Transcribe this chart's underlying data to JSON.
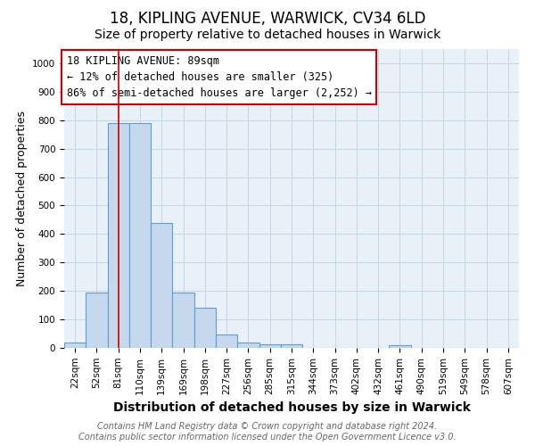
{
  "title1": "18, KIPLING AVENUE, WARWICK, CV34 6LD",
  "title2": "Size of property relative to detached houses in Warwick",
  "xlabel": "Distribution of detached houses by size in Warwick",
  "ylabel": "Number of detached properties",
  "categories": [
    "22sqm",
    "52sqm",
    "81sqm",
    "110sqm",
    "139sqm",
    "169sqm",
    "198sqm",
    "227sqm",
    "256sqm",
    "285sqm",
    "315sqm",
    "344sqm",
    "373sqm",
    "402sqm",
    "432sqm",
    "461sqm",
    "490sqm",
    "519sqm",
    "549sqm",
    "578sqm",
    "607sqm"
  ],
  "values": [
    20,
    195,
    790,
    790,
    440,
    195,
    140,
    48,
    20,
    13,
    13,
    0,
    0,
    0,
    0,
    10,
    0,
    0,
    0,
    0,
    0
  ],
  "bar_color": "#c6d9ec",
  "bar_edge_color": "#5a9fd4",
  "vline_x": 2,
  "vline_color": "#cc0000",
  "annotation_text": "18 KIPLING AVENUE: 89sqm\n← 12% of detached houses are smaller (325)\n86% of semi-detached houses are larger (2,252) →",
  "annotation_box_color": "#ffffff",
  "annotation_box_edge_color": "#cc0000",
  "ylim": [
    0,
    1050
  ],
  "yticks": [
    0,
    100,
    200,
    300,
    400,
    500,
    600,
    700,
    800,
    900,
    1000
  ],
  "footer1": "Contains HM Land Registry data © Crown copyright and database right 2024.",
  "footer2": "Contains public sector information licensed under the Open Government Licence v3.0.",
  "bg_color": "#ffffff",
  "plot_bg_color": "#e8f0f8",
  "grid_color": "#c8d4e0",
  "title1_fontsize": 12,
  "title2_fontsize": 10,
  "xlabel_fontsize": 10,
  "ylabel_fontsize": 9,
  "tick_fontsize": 7.5,
  "annotation_fontsize": 8.5,
  "footer_fontsize": 7
}
